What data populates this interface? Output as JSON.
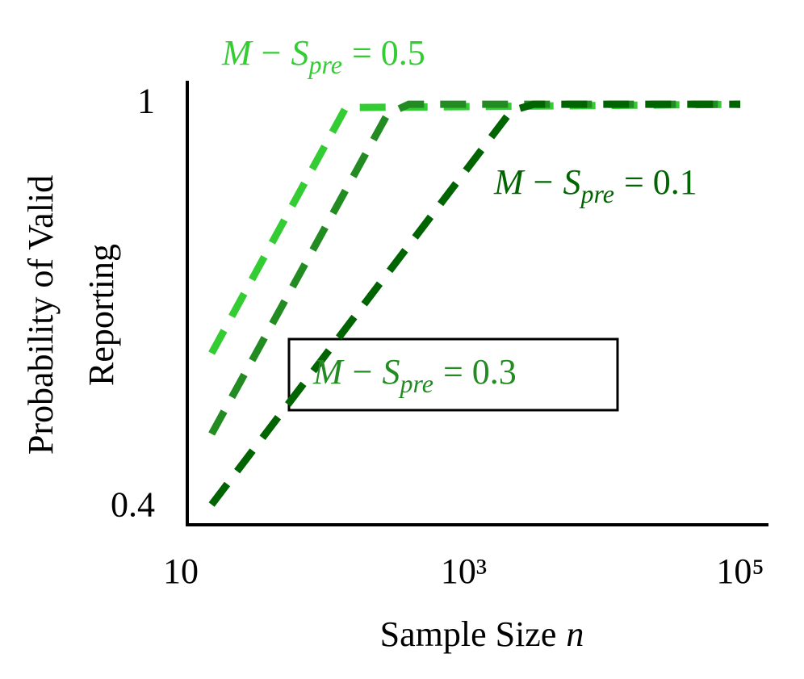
{
  "chart_data": {
    "type": "line",
    "x_label": [
      "Sample Size",
      "n"
    ],
    "y_label": [
      "Probability of Valid",
      "Reporting"
    ],
    "xscale": "log",
    "xlim": [
      10,
      160000
    ],
    "ylim": [
      0.375,
      1.035
    ],
    "xticks": [
      10,
      {
        "value": 1000,
        "label": "10³"
      },
      {
        "value": 100000,
        "label": "10⁵"
      }
    ],
    "yticks": [
      0.4,
      1
    ],
    "series": [
      {
        "label": [
          "M",
          "−",
          "S",
          "pre",
          "= 0.5"
        ],
        "color": "#33cc33",
        "x": [
          15,
          140,
          100000
        ],
        "values": [
          0.63,
          0.995,
          1
        ]
      },
      {
        "label": [
          "M",
          "−",
          "S",
          "pre",
          "= 0.3"
        ],
        "color": "#228b22",
        "x": [
          15,
          280,
          400,
          100000
        ],
        "values": [
          0.51,
          0.985,
          1,
          1
        ]
      },
      {
        "label": [
          "M",
          "−",
          "S",
          "pre",
          "= 0.1"
        ],
        "color": "#006400",
        "x": [
          15,
          2200,
          3200,
          100000
        ],
        "values": [
          0.405,
          0.99,
          1,
          1
        ]
      }
    ]
  }
}
